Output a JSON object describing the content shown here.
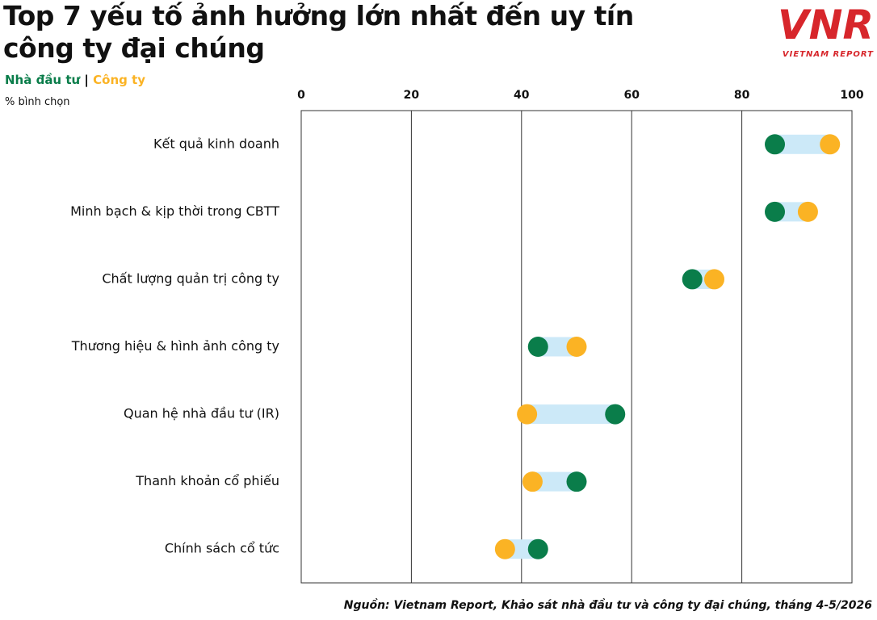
{
  "chart_data": {
    "type": "dumbbell",
    "title": "Top 7 yếu tố ảnh hưởng lớn nhất đến uy tín công ty đại chúng",
    "legend_separator": "|",
    "axis_label": "% bình chọn",
    "source": "Nguồn: Vietnam Report, Khảo sát nhà đầu tư và công ty đại chúng, tháng 4-5/2026",
    "logo": {
      "mark": "VNR",
      "name": "VIETNAM REPORT"
    },
    "categories": [
      "Kết quả kinh doanh",
      "Minh bạch & kịp thời trong CBTT",
      "Chất lượng quản trị công ty",
      "Thương hiệu & hình ảnh công ty",
      "Quan hệ nhà đầu tư (IR)",
      "Thanh khoản cổ phiếu",
      "Chính sách cổ tức"
    ],
    "series": [
      {
        "name": "Nhà đầu tư",
        "color": "#0a7d4a",
        "values": [
          86,
          86,
          71,
          43,
          57,
          50,
          43
        ]
      },
      {
        "name": "Công ty",
        "color": "#fbb324",
        "values": [
          96,
          92,
          75,
          50,
          41,
          42,
          37
        ]
      }
    ],
    "connector_color": "#cce9f8",
    "xlim": [
      0,
      100
    ],
    "xticks": [
      0,
      20,
      40,
      60,
      80,
      100
    ],
    "grid": true
  }
}
